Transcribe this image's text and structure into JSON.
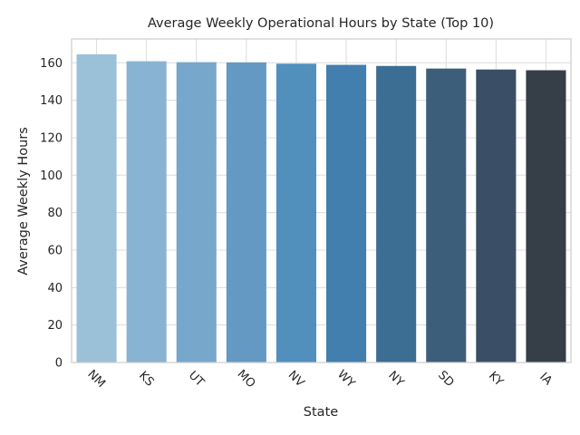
{
  "chart_data": {
    "type": "bar",
    "title": "Average Weekly Operational Hours by State (Top 10)",
    "xlabel": "State",
    "ylabel": "Average Weekly Hours",
    "categories": [
      "NM",
      "KS",
      "UT",
      "MO",
      "NV",
      "WY",
      "NY",
      "SD",
      "KY",
      "IA"
    ],
    "values": [
      164.5,
      160.8,
      160.3,
      160.2,
      159.5,
      158.9,
      158.3,
      156.9,
      156.4,
      156.0
    ],
    "ylim": [
      0,
      172.7
    ],
    "yticks": [
      0,
      20,
      40,
      60,
      80,
      100,
      120,
      140,
      160
    ],
    "grid": true,
    "bar_colors": [
      "#9bc1d9",
      "#89b3d2",
      "#77a7cb",
      "#6399c3",
      "#518fbd",
      "#427eae",
      "#3c6d93",
      "#3c5e7b",
      "#3a4f65",
      "#363f48"
    ],
    "xtick_rotation": 45
  }
}
